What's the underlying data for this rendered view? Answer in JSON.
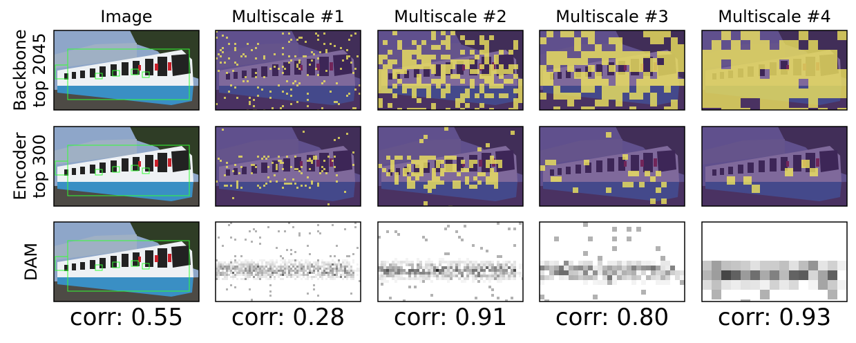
{
  "header": {
    "columns": [
      "Image",
      "Multiscale #1",
      "Multiscale #2",
      "Multiscale #3",
      "Multiscale #4"
    ]
  },
  "rows": [
    {
      "label": [
        "Backbone",
        "top 2045"
      ]
    },
    {
      "label": [
        "Encoder",
        "top 300"
      ]
    },
    {
      "label": [
        "DAM"
      ]
    }
  ],
  "footer": {
    "corr": [
      "corr: 0.55",
      "corr: 0.28",
      "corr: 0.91",
      "corr: 0.80",
      "corr: 0.93"
    ]
  }
}
